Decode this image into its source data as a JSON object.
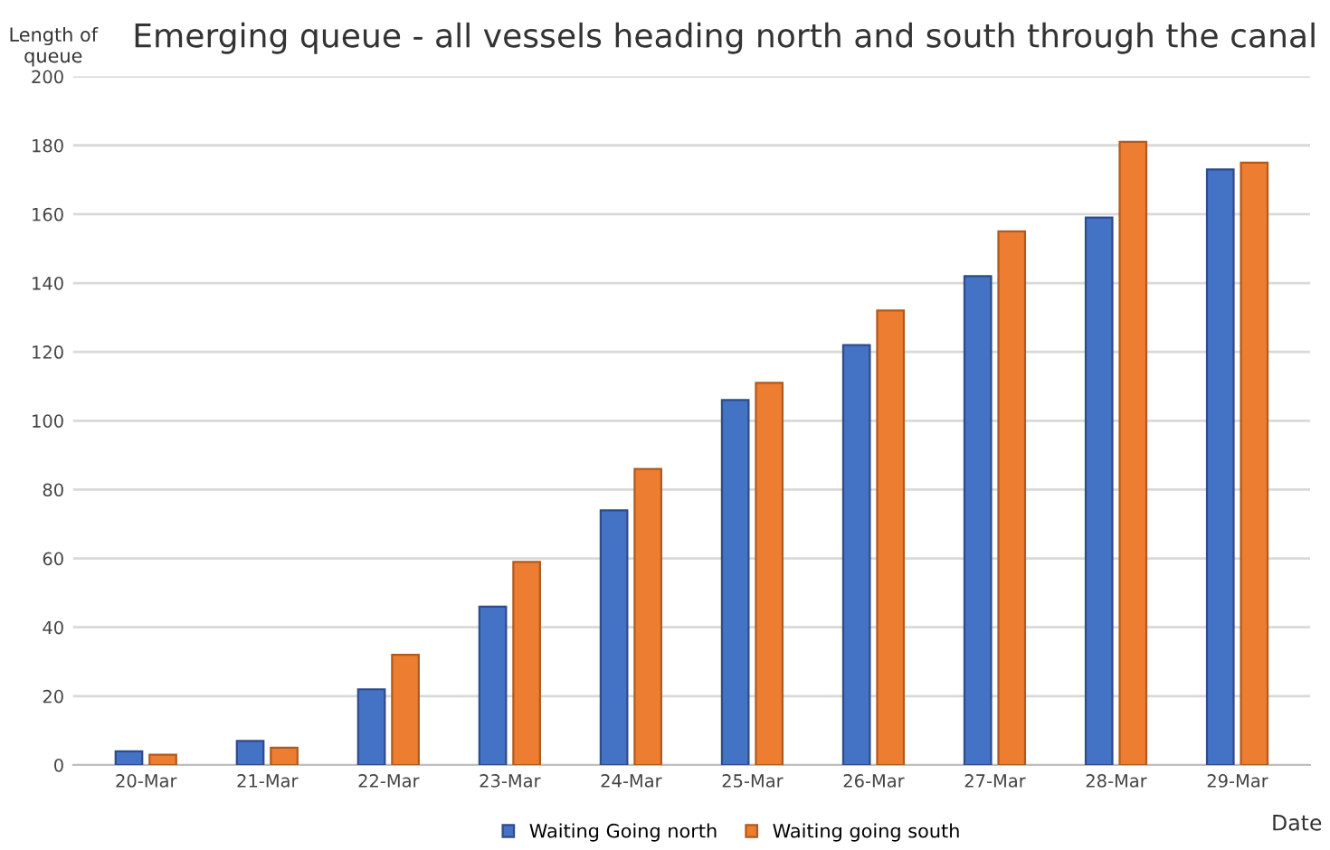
{
  "chart_data": {
    "type": "bar",
    "title": "Emerging queue - all vessels heading north and south through the canal",
    "xlabel": "Date",
    "ylabel": "Length of\nqueue",
    "categories": [
      "20-Mar",
      "21-Mar",
      "22-Mar",
      "23-Mar",
      "24-Mar",
      "25-Mar",
      "26-Mar",
      "27-Mar",
      "28-Mar",
      "29-Mar"
    ],
    "series": [
      {
        "name": "Waiting Going north",
        "color": "#4472c4",
        "values": [
          4,
          7,
          22,
          46,
          74,
          106,
          122,
          142,
          159,
          173
        ]
      },
      {
        "name": "Waiting going south",
        "color": "#ed7d31",
        "values": [
          3,
          5,
          32,
          59,
          86,
          111,
          132,
          155,
          181,
          175
        ]
      }
    ],
    "ylim": [
      0,
      200
    ],
    "yticks": [
      0,
      20,
      40,
      60,
      80,
      100,
      120,
      140,
      160,
      180,
      200
    ],
    "grid": "y",
    "legend": "bottom"
  }
}
